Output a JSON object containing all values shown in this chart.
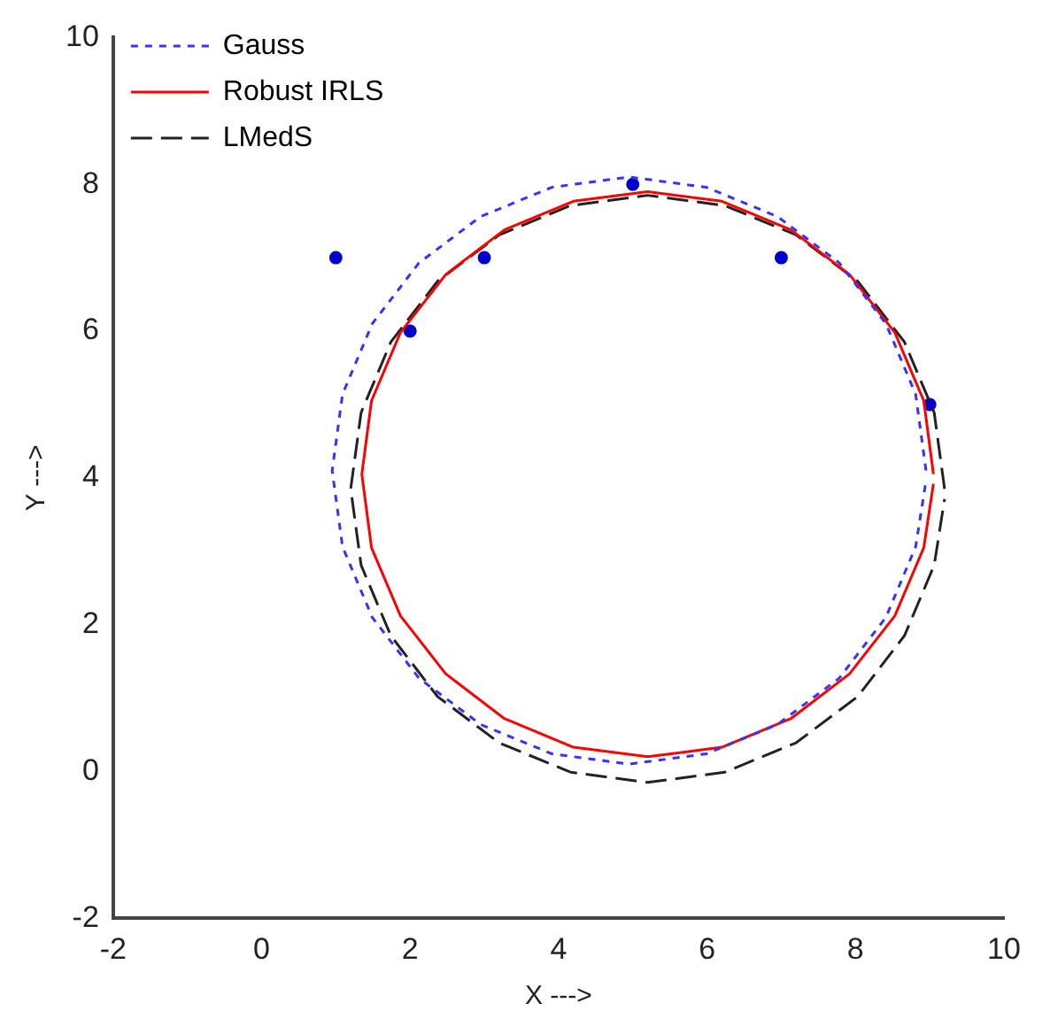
{
  "chart_data": {
    "type": "line",
    "xlabel": "X --->",
    "ylabel": "Y --->",
    "xlim": [
      -2,
      10
    ],
    "xticks": [
      -2,
      0,
      2,
      4,
      6,
      8,
      10
    ],
    "ylim": [
      -2,
      10
    ],
    "yticks": [
      -2,
      0,
      2,
      4,
      6,
      8,
      10
    ],
    "grid": false,
    "legend": "top left",
    "series": [
      {
        "name": "Gauss",
        "color": "#3333ff",
        "line_style": "dotted",
        "marker": "none",
        "x": [
          8.95,
          8.81,
          8.41,
          7.78,
          6.95,
          5.99,
          4.95,
          3.91,
          2.95,
          2.12,
          1.49,
          1.09,
          0.95,
          1.09,
          1.49,
          2.12,
          2.95,
          3.91,
          4.95,
          5.99,
          6.95,
          7.78,
          8.41,
          8.81,
          8.95
        ],
        "values": [
          4.1,
          5.14,
          6.1,
          6.93,
          7.56,
          7.96,
          8.1,
          7.96,
          7.56,
          6.93,
          6.1,
          5.14,
          4.1,
          3.06,
          2.1,
          1.27,
          0.64,
          0.24,
          0.1,
          0.24,
          0.64,
          1.27,
          2.1,
          3.06,
          3.96
        ]
      },
      {
        "name": "Robust IRLS",
        "color": "#ff0000",
        "line_style": "solid",
        "marker": "none",
        "x": [
          9.05,
          8.92,
          8.53,
          7.92,
          7.13,
          6.2,
          5.2,
          4.2,
          3.27,
          2.48,
          1.87,
          1.48,
          1.35,
          1.48,
          1.87,
          2.48,
          3.27,
          4.2,
          5.2,
          6.2,
          7.13,
          7.92,
          8.53,
          8.92,
          9.05
        ],
        "values": [
          4.05,
          5.05,
          5.98,
          6.77,
          7.38,
          7.77,
          7.9,
          7.77,
          7.38,
          6.77,
          5.98,
          5.05,
          4.05,
          3.05,
          2.12,
          1.33,
          0.72,
          0.33,
          0.2,
          0.33,
          0.72,
          1.33,
          2.12,
          3.05,
          3.92
        ]
      },
      {
        "name": "LMedS",
        "color": "#222222",
        "line_style": "dashed",
        "marker": "none",
        "x": [
          9.2,
          9.06,
          8.66,
          8.03,
          7.2,
          6.24,
          5.2,
          4.16,
          3.2,
          2.37,
          1.74,
          1.34,
          1.2,
          1.34,
          1.74,
          2.37,
          3.2,
          4.16,
          5.2,
          6.24,
          7.2,
          8.03,
          8.66,
          9.06,
          9.2
        ],
        "values": [
          3.85,
          4.89,
          5.85,
          6.68,
          7.31,
          7.71,
          7.85,
          7.71,
          7.31,
          6.68,
          5.85,
          4.89,
          3.85,
          2.81,
          1.85,
          1.02,
          0.39,
          -0.01,
          -0.15,
          -0.01,
          0.39,
          1.02,
          1.85,
          2.81,
          3.71
        ]
      },
      {
        "type": "scatter",
        "color": "#0000cc",
        "marker": "circle",
        "x": [
          1,
          2,
          3,
          5,
          7,
          9
        ],
        "values": [
          7,
          6,
          7,
          8,
          7,
          5
        ]
      }
    ]
  }
}
